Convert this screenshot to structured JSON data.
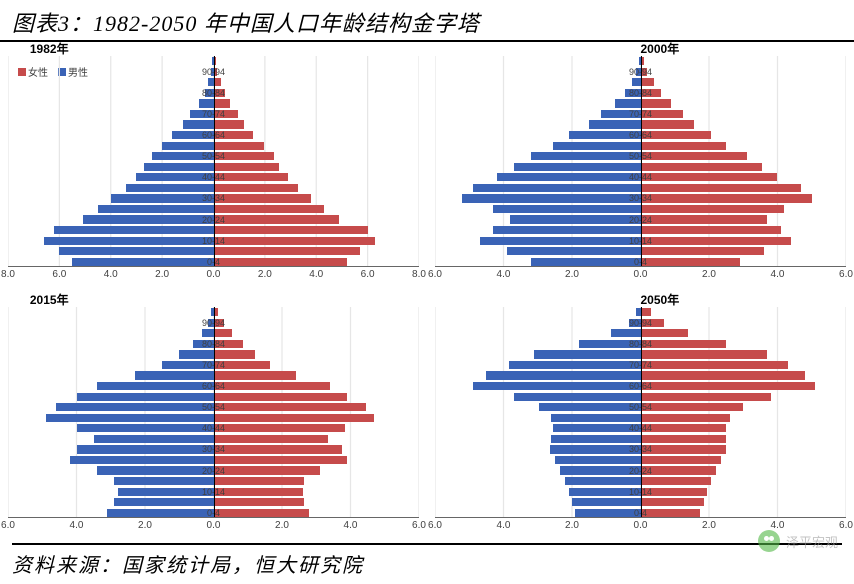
{
  "title": "图表3：1982-2050 年中国人口年龄结构金字塔",
  "source": "资料来源：国家统计局，恒大研究院",
  "watermark": "泽平宏观",
  "colors": {
    "female": "#c64b4b",
    "male": "#3a63b6",
    "grid": "#e6e6e6",
    "axis": "#666666",
    "text": "#404040",
    "background": "#ffffff"
  },
  "legend": {
    "female": "女性",
    "male": "男性"
  },
  "age_labels": [
    "0-4",
    "",
    "10-14",
    "",
    "20-24",
    "",
    "30-34",
    "",
    "40-44",
    "",
    "50-54",
    "",
    "60-64",
    "",
    "70-74",
    "",
    "80-84",
    "",
    "90-94",
    ""
  ],
  "panels": [
    {
      "title": "1982年",
      "title_left_pct": 7,
      "show_legend": true,
      "x_max": 8.0,
      "x_ticks": [
        8.0,
        6.0,
        4.0,
        2.0,
        0.0,
        2.0,
        4.0,
        6.0,
        8.0
      ],
      "male": [
        5.5,
        6.0,
        6.6,
        6.2,
        5.1,
        4.5,
        4.0,
        3.4,
        3.0,
        2.7,
        2.4,
        2.0,
        1.6,
        1.2,
        0.9,
        0.55,
        0.35,
        0.2,
        0.1,
        0.05
      ],
      "female": [
        5.2,
        5.7,
        6.3,
        6.0,
        4.9,
        4.3,
        3.8,
        3.3,
        2.9,
        2.55,
        2.35,
        1.95,
        1.55,
        1.2,
        0.95,
        0.65,
        0.45,
        0.3,
        0.15,
        0.08
      ]
    },
    {
      "title": "2000年",
      "title_left_pct": 50,
      "show_legend": false,
      "x_max": 6.0,
      "x_ticks": [
        6.0,
        4.0,
        2.0,
        0.0,
        2.0,
        4.0,
        6.0
      ],
      "male": [
        3.2,
        3.9,
        4.7,
        4.3,
        3.8,
        4.3,
        5.2,
        4.9,
        4.2,
        3.7,
        3.2,
        2.55,
        2.1,
        1.5,
        1.15,
        0.75,
        0.45,
        0.25,
        0.12,
        0.05
      ],
      "female": [
        2.9,
        3.6,
        4.4,
        4.1,
        3.7,
        4.2,
        5.0,
        4.7,
        4.0,
        3.55,
        3.1,
        2.5,
        2.05,
        1.55,
        1.25,
        0.9,
        0.6,
        0.4,
        0.2,
        0.1
      ]
    },
    {
      "title": "2015年",
      "title_left_pct": 7,
      "show_legend": false,
      "x_max": 6.0,
      "x_ticks": [
        6.0,
        4.0,
        2.0,
        0.0,
        2.0,
        4.0,
        6.0
      ],
      "male": [
        3.1,
        2.9,
        2.8,
        2.9,
        3.4,
        4.2,
        4.0,
        3.5,
        4.0,
        4.9,
        4.6,
        4.0,
        3.4,
        2.3,
        1.5,
        1.0,
        0.6,
        0.35,
        0.15,
        0.06
      ],
      "female": [
        2.8,
        2.65,
        2.6,
        2.65,
        3.1,
        3.9,
        3.75,
        3.35,
        3.85,
        4.7,
        4.45,
        3.9,
        3.4,
        2.4,
        1.65,
        1.2,
        0.85,
        0.55,
        0.3,
        0.13
      ]
    },
    {
      "title": "2050年",
      "title_left_pct": 50,
      "show_legend": false,
      "x_max": 6.0,
      "x_ticks": [
        6.0,
        4.0,
        2.0,
        0.0,
        2.0,
        4.0,
        6.0
      ],
      "male": [
        1.9,
        2.0,
        2.1,
        2.2,
        2.35,
        2.5,
        2.65,
        2.6,
        2.55,
        2.6,
        2.95,
        3.7,
        4.9,
        4.5,
        3.85,
        3.1,
        1.8,
        0.85,
        0.35,
        0.12
      ],
      "female": [
        1.75,
        1.85,
        1.95,
        2.05,
        2.2,
        2.35,
        2.5,
        2.5,
        2.5,
        2.6,
        3.0,
        3.8,
        5.1,
        4.8,
        4.3,
        3.7,
        2.5,
        1.4,
        0.7,
        0.3
      ]
    }
  ]
}
